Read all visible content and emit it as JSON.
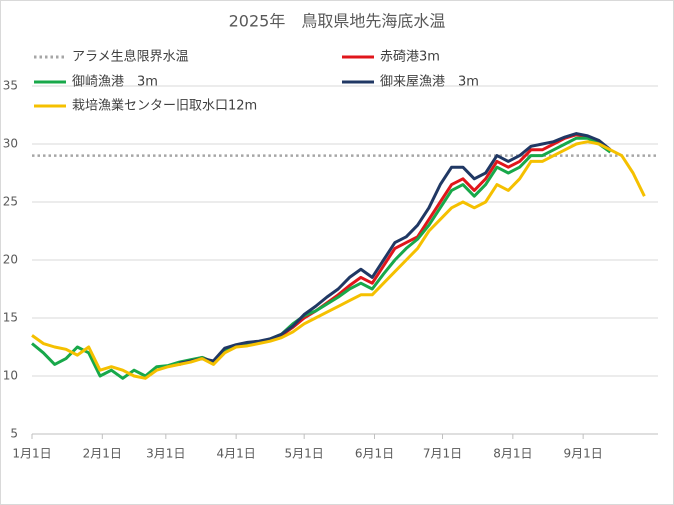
{
  "chart_data": {
    "type": "line",
    "title": "2025年　鳥取県地先海底水温",
    "x": [
      0,
      5,
      10,
      15,
      20,
      25,
      30,
      35,
      40,
      45,
      50,
      55,
      60,
      65,
      70,
      75,
      80,
      85,
      90,
      95,
      100,
      105,
      110,
      115,
      120,
      125,
      130,
      135,
      140,
      145,
      150,
      155,
      160,
      165,
      170,
      175,
      180,
      185,
      190,
      195,
      200,
      205,
      210,
      215,
      220,
      225,
      230,
      235,
      240,
      245,
      250,
      255,
      260,
      265,
      270
    ],
    "xlim": [
      0,
      276
    ],
    "xticks": [
      {
        "value": 0,
        "label": "1月1日"
      },
      {
        "value": 31,
        "label": "2月1日"
      },
      {
        "value": 59,
        "label": "3月1日"
      },
      {
        "value": 90,
        "label": "4月1日"
      },
      {
        "value": 120,
        "label": "5月1日"
      },
      {
        "value": 151,
        "label": "6月1日"
      },
      {
        "value": 181,
        "label": "7月1日"
      },
      {
        "value": 212,
        "label": "8月1日"
      },
      {
        "value": 243,
        "label": "9月1日"
      }
    ],
    "ylim": [
      5,
      35
    ],
    "yticks": [
      5,
      10,
      15,
      20,
      25,
      30,
      35
    ],
    "grid": true,
    "reference_lines": [
      {
        "name": "アラメ生息限界水温",
        "value": 29,
        "color": "#a6a6a6"
      }
    ],
    "series": [
      {
        "name": "赤碕港3m",
        "color": "#e0161b",
        "values": [
          null,
          null,
          null,
          null,
          null,
          null,
          null,
          null,
          null,
          null,
          null,
          null,
          null,
          11.0,
          11.3,
          11.6,
          11.2,
          12.2,
          12.6,
          12.8,
          12.9,
          13.1,
          13.5,
          14.2,
          15.0,
          15.6,
          16.3,
          17.0,
          17.8,
          18.5,
          18.0,
          19.5,
          21.0,
          21.5,
          22.0,
          23.5,
          25.0,
          26.5,
          27.0,
          26.0,
          27.0,
          28.5,
          28.0,
          28.5,
          29.5,
          29.5,
          30.0,
          30.5,
          30.8,
          30.6,
          30.2,
          29.5,
          null,
          null,
          null
        ]
      },
      {
        "name": "御崎漁港　3m",
        "color": "#18a84a",
        "values": [
          12.8,
          12.0,
          11.0,
          11.5,
          12.5,
          12.0,
          10.0,
          10.5,
          9.8,
          10.5,
          10.0,
          10.8,
          10.9,
          11.2,
          11.4,
          11.6,
          11.2,
          12.3,
          12.6,
          12.8,
          12.9,
          13.2,
          13.6,
          14.5,
          15.2,
          15.6,
          16.2,
          16.8,
          17.5,
          18.0,
          17.5,
          18.8,
          20.0,
          21.0,
          21.8,
          23.0,
          24.5,
          26.0,
          26.5,
          25.5,
          26.5,
          28.0,
          27.5,
          28.0,
          29.0,
          29.0,
          29.5,
          30.0,
          30.5,
          30.5,
          30.0,
          29.3,
          null,
          null,
          null
        ]
      },
      {
        "name": "御来屋漁港　3m",
        "color": "#203864",
        "values": [
          null,
          null,
          null,
          null,
          null,
          null,
          null,
          null,
          null,
          null,
          null,
          null,
          null,
          11.1,
          11.3,
          11.5,
          11.3,
          12.4,
          12.7,
          12.9,
          13.0,
          13.2,
          13.6,
          14.3,
          15.3,
          16.0,
          16.8,
          17.5,
          18.5,
          19.2,
          18.5,
          20.0,
          21.5,
          22.0,
          23.0,
          24.5,
          26.5,
          28.0,
          28.0,
          27.0,
          27.5,
          29.0,
          28.5,
          29.0,
          29.8,
          30.0,
          30.2,
          30.6,
          30.9,
          30.7,
          30.3,
          29.5,
          null,
          null,
          null
        ]
      },
      {
        "name": "栽培漁業センター旧取水口12m",
        "color": "#f5c000",
        "values": [
          13.5,
          12.8,
          12.5,
          12.3,
          11.8,
          12.5,
          10.5,
          10.8,
          10.5,
          10.0,
          9.8,
          10.5,
          10.8,
          11.0,
          11.2,
          11.5,
          11.0,
          12.0,
          12.5,
          12.6,
          12.8,
          13.0,
          13.3,
          13.8,
          14.5,
          15.0,
          15.5,
          16.0,
          16.5,
          17.0,
          17.0,
          18.0,
          19.0,
          20.0,
          21.0,
          22.5,
          23.5,
          24.5,
          25.0,
          24.5,
          25.0,
          26.5,
          26.0,
          27.0,
          28.5,
          28.5,
          29.0,
          29.5,
          30.0,
          30.2,
          30.0,
          29.5,
          29.0,
          27.5,
          25.5
        ]
      }
    ]
  }
}
